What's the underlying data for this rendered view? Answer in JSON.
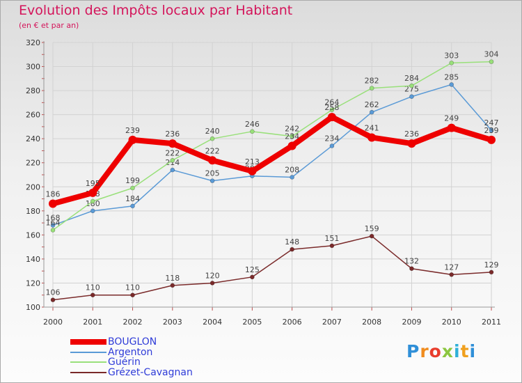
{
  "chart_data": {
    "type": "line",
    "title": "Evolution des Impôts locaux par Habitant",
    "subtitle": "(en € et par an)",
    "xlabel": "",
    "ylabel": "",
    "ylim": [
      100,
      320
    ],
    "yticks": [
      "100",
      "120",
      "140",
      "160",
      "180",
      "200",
      "220",
      "240",
      "260",
      "280",
      "300",
      "320"
    ],
    "grid": true,
    "legend_position": "bottom-left",
    "categories": [
      "2000",
      "2001",
      "2002",
      "2003",
      "2004",
      "2005",
      "2006",
      "2007",
      "2008",
      "2009",
      "2010",
      "2011"
    ],
    "series": [
      {
        "name": "Grézet-Cavagnan",
        "color": "#7a2a2a",
        "values": [
          106,
          110,
          110,
          118,
          120,
          125,
          148,
          151,
          159,
          132,
          127,
          129
        ]
      },
      {
        "name": "Argenton",
        "color": "#5a9ad6",
        "values": [
          168,
          180,
          184,
          214,
          205,
          209,
          208,
          234,
          262,
          275,
          285,
          247
        ]
      },
      {
        "name": "Guérin",
        "color": "#99e07a",
        "values": [
          164,
          188,
          199,
          222,
          240,
          246,
          242,
          264,
          282,
          284,
          303,
          304
        ]
      },
      {
        "name": "BOUGLON",
        "color": "#ee0000",
        "values": [
          186,
          195,
          239,
          236,
          222,
          213,
          234,
          258,
          241,
          236,
          249,
          239
        ]
      }
    ],
    "legend_order": [
      "BOUGLON",
      "Argenton",
      "Guérin",
      "Grézet-Cavagnan"
    ]
  },
  "branding": {
    "logo_letters": [
      "P",
      "r",
      "o",
      "x",
      "i",
      "t",
      "i"
    ]
  }
}
